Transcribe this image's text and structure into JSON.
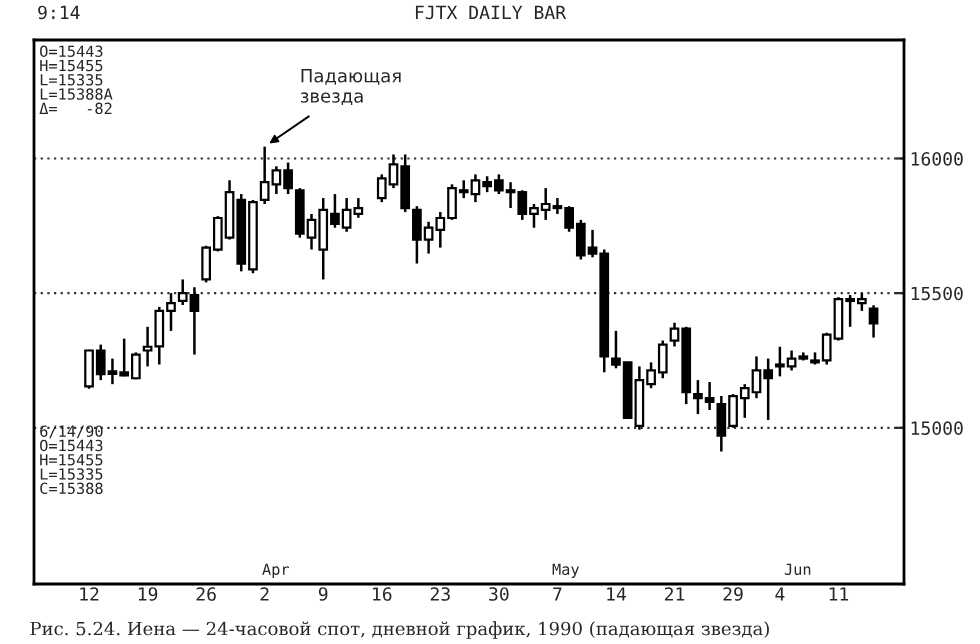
{
  "chart_data": {
    "type": "candlestick",
    "title": "FJTX DAILY BAR",
    "categories": [
      "12",
      null,
      null,
      null,
      null,
      "19",
      null,
      null,
      null,
      null,
      "26",
      null,
      null,
      null,
      null,
      "2",
      null,
      null,
      null,
      null,
      "9",
      null,
      null,
      null,
      null,
      "16",
      null,
      null,
      null,
      null,
      "23",
      null,
      null,
      null,
      null,
      "30",
      null,
      null,
      null,
      null,
      "7",
      null,
      null,
      null,
      null,
      "14",
      null,
      null,
      null,
      null,
      "21",
      null,
      null,
      null,
      null,
      "29",
      null,
      null,
      null,
      "4",
      null,
      null,
      null,
      null,
      "11",
      null,
      null,
      null
    ],
    "ohlc": [
      [
        15154,
        15290,
        15145,
        15287
      ],
      [
        15287,
        15309,
        15177,
        15199
      ],
      [
        15210,
        15257,
        15162,
        15200
      ],
      [
        15206,
        15331,
        15191,
        15195
      ],
      [
        15184,
        15280,
        15180,
        15272
      ],
      [
        15287,
        15375,
        15228,
        15301
      ],
      [
        15302,
        15449,
        15235,
        15434
      ],
      [
        15434,
        15500,
        15360,
        15463
      ],
      [
        15471,
        15551,
        15456,
        15500
      ],
      [
        15493,
        15522,
        15272,
        15434
      ],
      [
        15551,
        15676,
        15540,
        15669
      ],
      [
        15662,
        15786,
        15655,
        15779
      ],
      [
        15706,
        15919,
        15699,
        15875
      ],
      [
        15846,
        15868,
        15581,
        15610
      ],
      [
        15588,
        15846,
        15574,
        15838
      ],
      [
        15846,
        16044,
        15831,
        15912
      ],
      [
        15904,
        15971,
        15868,
        15956
      ],
      [
        15956,
        15985,
        15868,
        15890
      ],
      [
        15882,
        15890,
        15706,
        15721
      ],
      [
        15706,
        15794,
        15662,
        15772
      ],
      [
        15662,
        15853,
        15551,
        15809
      ],
      [
        15794,
        15868,
        15743,
        15757
      ],
      [
        15743,
        15853,
        15728,
        15809
      ],
      [
        15794,
        15853,
        15780,
        15816
      ],
      null,
      [
        15853,
        15941,
        15838,
        15926
      ],
      [
        15904,
        16015,
        15890,
        15978
      ],
      [
        15971,
        16015,
        15801,
        15816
      ],
      [
        15809,
        15823,
        15610,
        15699
      ],
      [
        15699,
        15765,
        15647,
        15743
      ],
      [
        15735,
        15801,
        15669,
        15779
      ],
      [
        15779,
        15904,
        15772,
        15890
      ],
      [
        15875,
        15919,
        15853,
        15882
      ],
      [
        15868,
        15941,
        15838,
        15919
      ],
      [
        15912,
        15934,
        15875,
        15897
      ],
      [
        15919,
        15941,
        15868,
        15882
      ],
      [
        15882,
        15912,
        15816,
        15875
      ],
      [
        15875,
        15882,
        15772,
        15794
      ],
      [
        15794,
        15831,
        15743,
        15816
      ],
      [
        15809,
        15890,
        15772,
        15831
      ],
      [
        15823,
        15853,
        15794,
        15816
      ],
      [
        15816,
        15823,
        15728,
        15743
      ],
      [
        15757,
        15772,
        15625,
        15640
      ],
      [
        15669,
        15735,
        15633,
        15647
      ],
      [
        15647,
        15662,
        15206,
        15265
      ],
      [
        15257,
        15360,
        15221,
        15235
      ],
      [
        15243,
        15243,
        15037,
        15037
      ],
      [
        15007,
        15228,
        14993,
        15177
      ],
      [
        15162,
        15243,
        15147,
        15213
      ],
      [
        15206,
        15324,
        15184,
        15309
      ],
      [
        15324,
        15390,
        15302,
        15368
      ],
      [
        15368,
        15375,
        15088,
        15132
      ],
      [
        15125,
        15177,
        15051,
        15110
      ],
      [
        15110,
        15170,
        15066,
        15096
      ],
      [
        15088,
        15118,
        14912,
        14971
      ],
      [
        15007,
        15125,
        15000,
        15118
      ],
      [
        15110,
        15162,
        15037,
        15147
      ],
      [
        15132,
        15265,
        15110,
        15213
      ],
      [
        15213,
        15257,
        15029,
        15184
      ],
      [
        15235,
        15301,
        15191,
        15228
      ],
      [
        15228,
        15287,
        15213,
        15257
      ],
      [
        15257,
        15280,
        15250,
        15265
      ],
      [
        15250,
        15280,
        15235,
        15243
      ],
      [
        15250,
        15353,
        15235,
        15346
      ],
      [
        15331,
        15485,
        15324,
        15478
      ],
      [
        15478,
        15493,
        15375,
        15471
      ],
      [
        15463,
        15500,
        15434,
        15478
      ],
      [
        15443,
        15455,
        15335,
        15388
      ]
    ],
    "color": "#000000",
    "ylim": [
      14420,
      16440
    ],
    "yticks": [
      15000,
      15500,
      16000
    ],
    "grid": "y",
    "annotations": [
      "9:14",
      "O=15443\nH=15455\nL=15335\nL=15388A\nΔ=   -82",
      "6/14/90\nO=15443\nH=15455\nL=15335\nC=15388",
      "Рис. 5.24. Иена — 24-часовой спот, дневной график, 1990 (падающая звезда)",
      "Apr",
      "May",
      "Jun",
      {
        "text": "Падающая\nзвезда",
        "x": "2",
        "y": 16044
      }
    ]
  }
}
